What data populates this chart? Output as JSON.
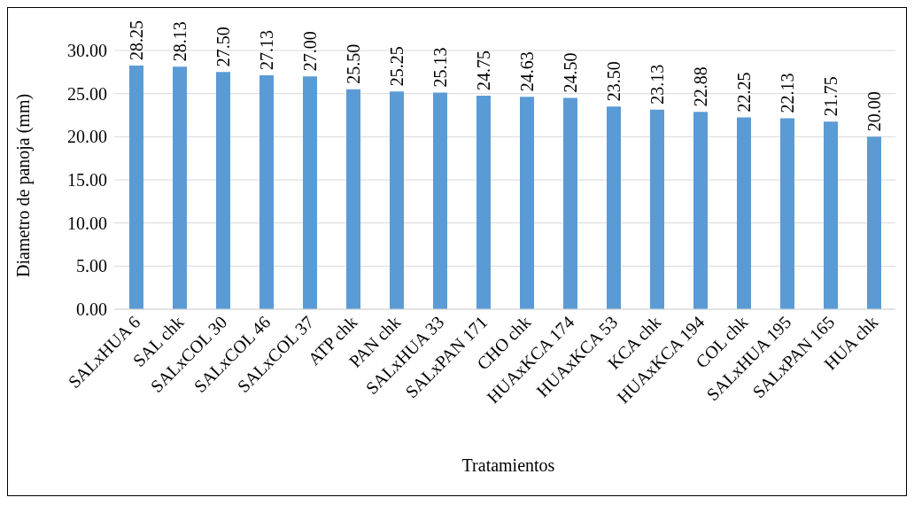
{
  "chart_data": {
    "type": "bar",
    "xlabel": "Tratamientos",
    "ylabel": "Diametro de panoja (mm)",
    "categories": [
      "SALxHUA 6",
      "SAL chk",
      "SALxCOL 30",
      "SALxCOL 46",
      "SALxCOL 37",
      "ATP chk",
      "PAN chk",
      "SALxHUA 33",
      "SALxPAN 171",
      "CHO chk",
      "HUAxKCA 174",
      "HUAxKCA 53",
      "KCA chk",
      "HUAxKCA 194",
      "COL chk",
      "SALxHUA 195",
      "SALxPAN 165",
      "HUA chk"
    ],
    "values": [
      28.25,
      28.13,
      27.5,
      27.13,
      27,
      25.5,
      25.25,
      25.13,
      24.75,
      24.63,
      24.5,
      23.5,
      23.13,
      22.88,
      22.25,
      22.13,
      21.75,
      20
    ],
    "value_labels": [
      "28.25",
      "28.13",
      "27.50",
      "27.13",
      "27.00",
      "25.50",
      "25.25",
      "25.13",
      "24.75",
      "24.63",
      "24.50",
      "23.50",
      "23.13",
      "22.88",
      "22.25",
      "22.13",
      "21.75",
      "20.00"
    ],
    "color": "#5b9bd5",
    "ylim": [
      0,
      30
    ],
    "yticks": [
      {
        "value": 0,
        "label": "0.00"
      },
      {
        "value": 5,
        "label": "5.00"
      },
      {
        "value": 10,
        "label": "10.00"
      },
      {
        "value": 15,
        "label": "15.00"
      },
      {
        "value": 20,
        "label": "20.00"
      },
      {
        "value": 25,
        "label": "25.00"
      },
      {
        "value": 30,
        "label": "30.00"
      }
    ],
    "grid": "y",
    "legend": false
  }
}
